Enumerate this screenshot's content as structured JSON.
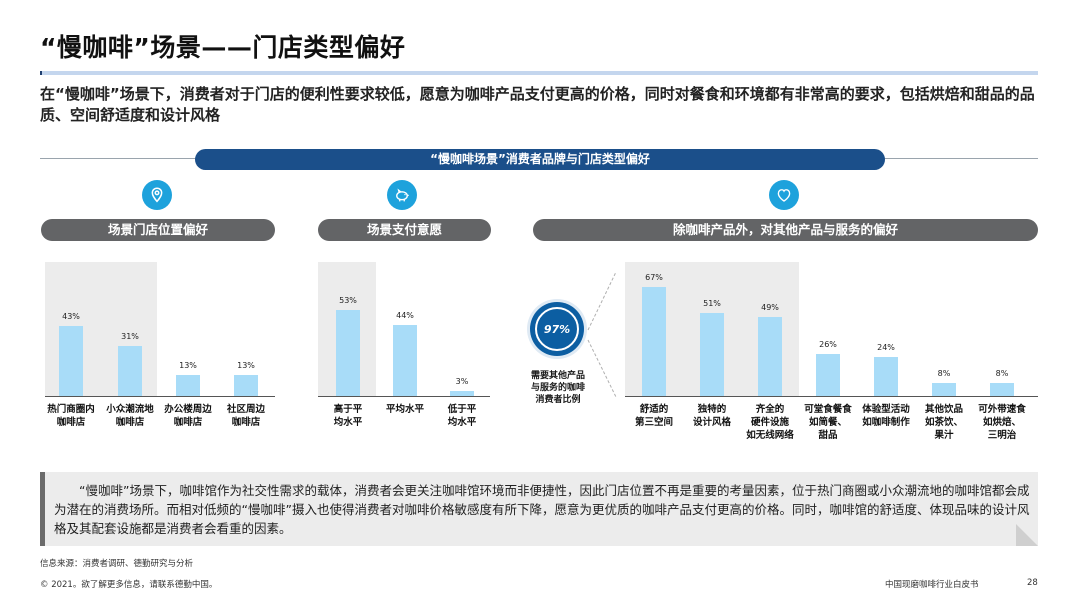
{
  "title": "“慢咖啡”场景——门店类型偏好",
  "summary": "在“慢咖啡”场景下，消费者对于门店的便利性要求较低，愿意为咖啡产品支付更高的价格，同时对餐食和环境都有非常高的要求，包括烘焙和甜品的品质、空间舒适度和设计风格",
  "banner": "“慢咖啡场景”消费者品牌与门店类型偏好",
  "icons": [
    "location-pin-icon",
    "piggy-bank-icon",
    "heart-icon"
  ],
  "colors": {
    "bar": "#a8dcf8",
    "accent": "#1b4f8a",
    "icon": "#1ea2dc",
    "pill": "#636466",
    "ring": "#0c5ea2"
  },
  "callout": {
    "value": "97%",
    "label": "需要其他产品与服务的咖啡消费者比例"
  },
  "note": "“慢咖啡”场景下，咖啡馆作为社交性需求的载体，消费者会更关注咖啡馆环境而非便捷性，因此门店位置不再是重要的考量因素，位于热门商圈或小众潮流地的咖啡馆都会成为潜在的消费场所。而相对低频的“慢咖啡”摄入也使得消费者对咖啡价格敏感度有所下降，愿意为更优质的咖啡产品支付更高的价格。同时，咖啡馆的舒适度、体现品味的设计风格及其配套设施都是消费者会看重的因素。",
  "footer": {
    "source": "信息来源：消费者调研、德勤研究与分析",
    "copyright": "© 2021。欲了解更多信息，请联系德勤中国。",
    "report": "中国现磨咖啡行业白皮书",
    "page": "28"
  },
  "chart_data": [
    {
      "type": "bar",
      "title": "场景门店位置偏好",
      "categories": [
        "热门商圈内咖啡店",
        "小众潮流地咖啡店",
        "办公楼周边咖啡店",
        "社区周边咖啡店"
      ],
      "values": [
        43,
        31,
        13,
        13
      ],
      "labels": [
        "43%",
        "31%",
        "13%",
        "13%"
      ],
      "highlighted": [
        0,
        1
      ],
      "ylim": [
        0,
        50
      ]
    },
    {
      "type": "bar",
      "title": "场景支付意愿",
      "categories": [
        "高于平均水平",
        "平均水平",
        "低于平均水平"
      ],
      "values": [
        53,
        44,
        3
      ],
      "labels": [
        "53%",
        "44%",
        "3%"
      ],
      "highlighted": [
        0
      ],
      "ylim": [
        0,
        60
      ]
    },
    {
      "type": "bar",
      "title": "除咖啡产品外，对其他产品与服务的偏好",
      "categories": [
        "舒适的第三空间",
        "独特的设计风格",
        "齐全的硬件设施如无线网络",
        "可堂食餐食如简餐、甜品",
        "体验型活动如咖啡制作",
        "其他饮品如茶饮、果汁",
        "可外带速食如烘焙、三明治"
      ],
      "values": [
        67,
        51,
        49,
        26,
        24,
        8,
        8
      ],
      "labels": [
        "67%",
        "51%",
        "49%",
        "26%",
        "24%",
        "8%",
        "8%"
      ],
      "highlighted": [
        0,
        1,
        2
      ],
      "ylim": [
        0,
        75
      ]
    }
  ]
}
